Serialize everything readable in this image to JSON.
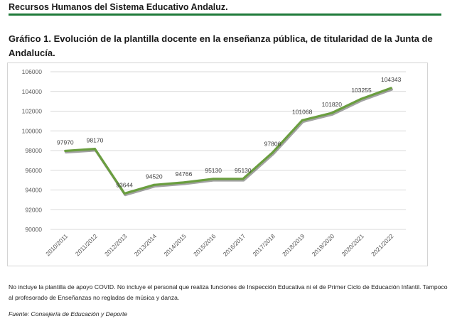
{
  "header": {
    "title": "Recursos Humanos del Sistema Educativo Andaluz.",
    "rule_color": "#1f7a3a"
  },
  "chart_title": "Gráfico 1. Evolución de la plantilla docente en la enseñanza pública, de titularidad de la Junta de Andalucía.",
  "chart_data": {
    "type": "line",
    "title": "Gráfico 1. Evolución de la plantilla docente en la enseñanza pública, de titularidad de la Junta de Andalucía.",
    "xlabel": "",
    "ylabel": "",
    "categories": [
      "2010/2011",
      "2011/2012",
      "2012/2013",
      "2013/2014",
      "2014/2015",
      "2015/2016",
      "2016/2017",
      "2017/2018",
      "2018/2019",
      "2019/2020",
      "2020/2021",
      "2021/2022"
    ],
    "series": [
      {
        "name": "Plantilla docente",
        "values": [
          97970,
          98170,
          93644,
          94520,
          94766,
          95130,
          95130,
          97806,
          101068,
          101820,
          103255,
          104343
        ],
        "color": "#6a9e3f",
        "shadow_color": "#555555"
      }
    ],
    "ylim": [
      90000,
      106000
    ],
    "yticks": [
      90000,
      92000,
      94000,
      96000,
      98000,
      100000,
      102000,
      104000,
      106000
    ],
    "grid": true,
    "grid_color": "#d9d9d9",
    "legend": "none",
    "data_labels": true
  },
  "note": "No incluye la plantilla de apoyo COVID. No incluye el personal que realiza funciones de Inspección Educativa ni el de Primer Ciclo de Educación Infantil. Tampoco al profesorado de Enseñanzas no regladas de música y danza.",
  "source": "Fuente: Consejería de Educación y Deporte"
}
